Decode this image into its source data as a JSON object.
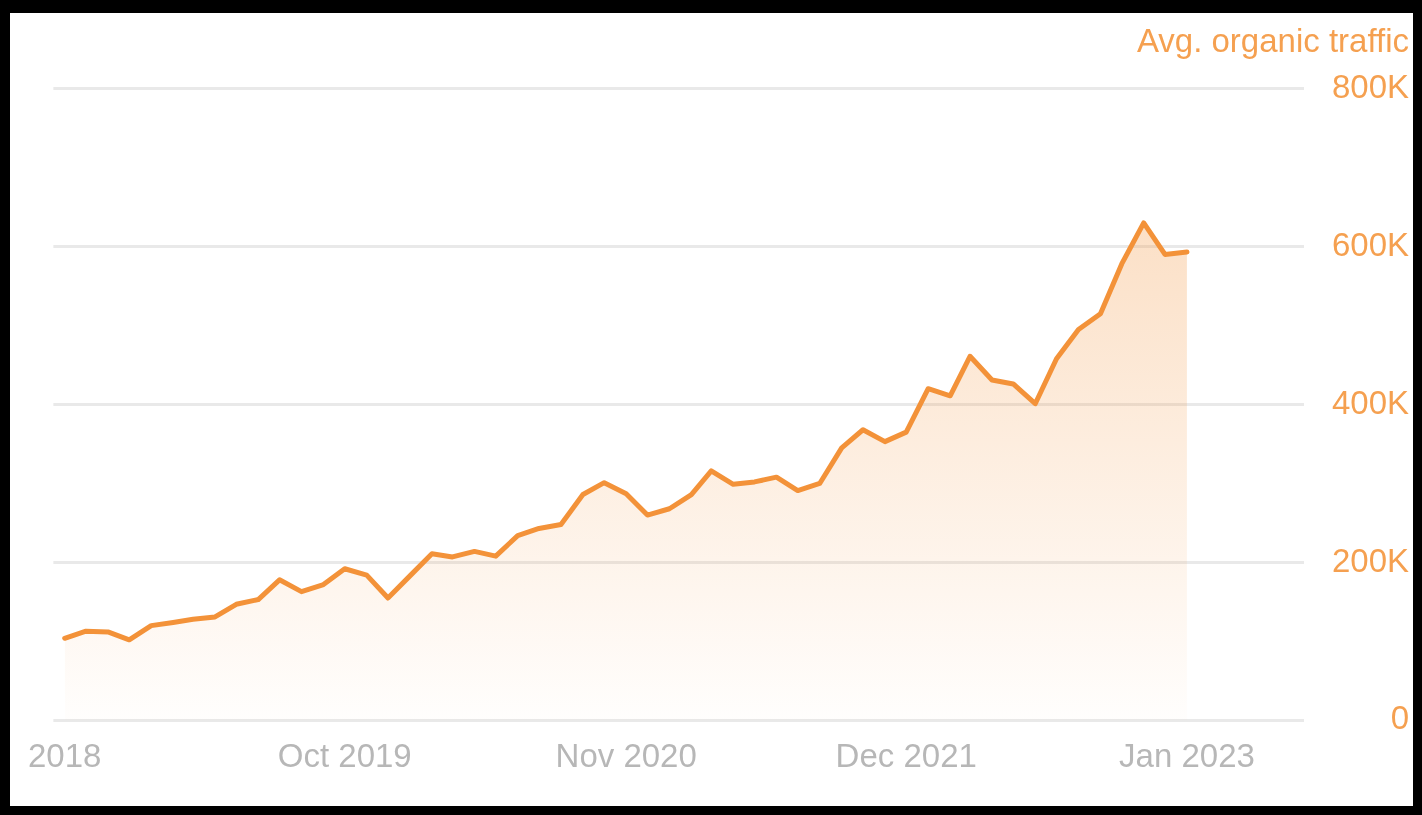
{
  "chart_data": {
    "type": "area",
    "ylabel": "Avg. organic traffic",
    "x": [
      "2018-09",
      "2018-10",
      "2018-11",
      "2018-12",
      "2019-01",
      "2019-02",
      "2019-03",
      "2019-04",
      "2019-05",
      "2019-06",
      "2019-07",
      "2019-08",
      "2019-09",
      "2019-10",
      "2019-11",
      "2019-12",
      "2020-01",
      "2020-02",
      "2020-03",
      "2020-04",
      "2020-05",
      "2020-06",
      "2020-07",
      "2020-08",
      "2020-09",
      "2020-10",
      "2020-11",
      "2020-12",
      "2021-01",
      "2021-02",
      "2021-03",
      "2021-04",
      "2021-05",
      "2021-06",
      "2021-07",
      "2021-08",
      "2021-09",
      "2021-10",
      "2021-11",
      "2021-12",
      "2022-01",
      "2022-02",
      "2022-03",
      "2022-04",
      "2022-05",
      "2022-06",
      "2022-07",
      "2022-08",
      "2022-09",
      "2022-10",
      "2022-11",
      "2022-12",
      "2023-01"
    ],
    "values": [
      104000,
      113000,
      112000,
      102000,
      120000,
      124000,
      128000,
      131000,
      147000,
      153000,
      178000,
      163000,
      172000,
      192000,
      184000,
      155000,
      183000,
      211000,
      207000,
      214000,
      208000,
      234000,
      243000,
      248000,
      286000,
      301000,
      287000,
      260000,
      268000,
      286000,
      316000,
      299000,
      302000,
      308000,
      291000,
      300000,
      345000,
      368000,
      353000,
      365000,
      420000,
      411000,
      461000,
      431000,
      426000,
      401000,
      458000,
      495000,
      515000,
      578000,
      630000,
      590000,
      593000
    ],
    "color": "#f39239",
    "xlim": [
      "2018-08-16",
      "2023-06-15"
    ],
    "xticks": [
      {
        "value": "2018-09",
        "label": "2018"
      },
      {
        "value": "2019-10",
        "label": "Oct 2019"
      },
      {
        "value": "2020-11",
        "label": "Nov 2020"
      },
      {
        "value": "2021-12",
        "label": "Dec 2021"
      },
      {
        "value": "2023-01",
        "label": "Jan 2023"
      }
    ],
    "ylim": [
      0,
      800000
    ],
    "yticks": [
      0,
      {
        "value": 200000,
        "label": "200K"
      },
      {
        "value": 400000,
        "label": "400K"
      },
      {
        "value": 600000,
        "label": "600K"
      },
      {
        "value": 800000,
        "label": "800K"
      }
    ],
    "grid": "y",
    "legend": false,
    "marker": "none"
  }
}
